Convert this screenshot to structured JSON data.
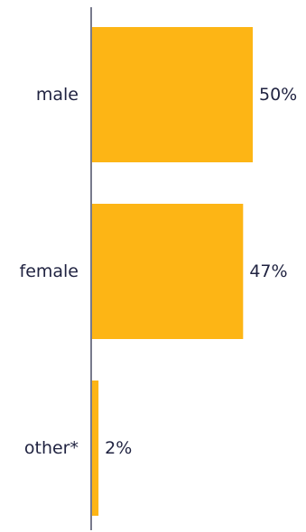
{
  "chart_data": {
    "type": "bar",
    "orientation": "horizontal",
    "categories": [
      "male",
      "female",
      "other*"
    ],
    "values": [
      50,
      47,
      2
    ],
    "value_labels": [
      "50%",
      "47%",
      "2%"
    ],
    "unit": "%",
    "xlim": [
      0,
      50
    ],
    "grid": false,
    "legend": "none",
    "title": "",
    "xlabel": "",
    "ylabel": "",
    "colors": {
      "bar": "#FDB515",
      "axis": "#1F2240",
      "text": "#1F2240"
    }
  }
}
